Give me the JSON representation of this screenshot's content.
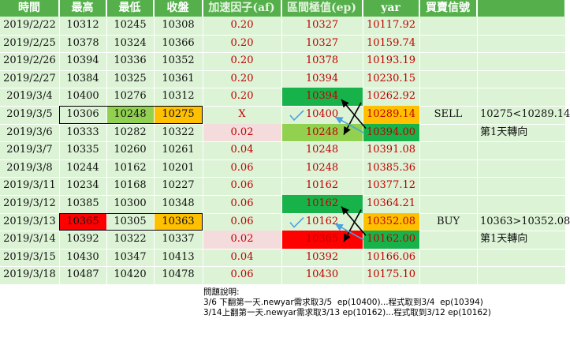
{
  "headers": [
    "時間",
    "最高",
    "最低",
    "收盤",
    "加速因子(af)",
    "區間極值(ep)",
    "yar",
    "買賣信號",
    ""
  ],
  "rows": [
    {
      "date": "2019/2/22",
      "high": "10312",
      "low": "10245",
      "close": "10308",
      "af": "0.20",
      "ep": "10327",
      "yar": "10117.92",
      "signal": "",
      "note": ""
    },
    {
      "date": "2019/2/25",
      "high": "10378",
      "low": "10324",
      "close": "10366",
      "af": "0.20",
      "ep": "10327",
      "yar": "10159.74",
      "signal": "",
      "note": ""
    },
    {
      "date": "2019/2/26",
      "high": "10394",
      "low": "10336",
      "close": "10352",
      "af": "0.20",
      "ep": "10378",
      "yar": "10193.19",
      "signal": "",
      "note": ""
    },
    {
      "date": "2019/2/27",
      "high": "10384",
      "low": "10325",
      "close": "10361",
      "af": "0.20",
      "ep": "10394",
      "yar": "10230.15",
      "signal": "",
      "note": ""
    },
    {
      "date": "2019/3/4",
      "high": "10400",
      "low": "10276",
      "close": "10312",
      "af": "0.20",
      "ep": "10394",
      "yar": "10262.92",
      "signal": "",
      "note": ""
    },
    {
      "date": "2019/3/5",
      "high": "10306",
      "low": "10248",
      "close": "10275",
      "af": "X",
      "ep": "10400",
      "yar": "10289.14",
      "signal": "SELL",
      "note": "10275<10289.14"
    },
    {
      "date": "2019/3/6",
      "high": "10333",
      "low": "10282",
      "close": "10322",
      "af": "0.02",
      "ep": "10248",
      "yar": "10394.00",
      "signal": "",
      "note": "第1天轉向"
    },
    {
      "date": "2019/3/7",
      "high": "10335",
      "low": "10260",
      "close": "10261",
      "af": "0.04",
      "ep": "10248",
      "yar": "10391.08",
      "signal": "",
      "note": ""
    },
    {
      "date": "2019/3/8",
      "high": "10244",
      "low": "10162",
      "close": "10201",
      "af": "0.06",
      "ep": "10248",
      "yar": "10385.36",
      "signal": "",
      "note": ""
    },
    {
      "date": "2019/3/11",
      "high": "10234",
      "low": "10168",
      "close": "10227",
      "af": "0.06",
      "ep": "10162",
      "yar": "10377.12",
      "signal": "",
      "note": ""
    },
    {
      "date": "2019/3/12",
      "high": "10385",
      "low": "10300",
      "close": "10348",
      "af": "0.06",
      "ep": "10162",
      "yar": "10364.21",
      "signal": "",
      "note": ""
    },
    {
      "date": "2019/3/13",
      "high": "10365",
      "low": "10305",
      "close": "10363",
      "af": "0.06",
      "ep": "10162",
      "yar": "10352.08",
      "signal": "BUY",
      "note": "10363>10352.08"
    },
    {
      "date": "2019/3/14",
      "high": "10392",
      "low": "10322",
      "close": "10337",
      "af": "0.02",
      "ep": "10365",
      "yar": "10162.00",
      "signal": "",
      "note": "第1天轉向"
    },
    {
      "date": "2019/3/15",
      "high": "10430",
      "low": "10347",
      "close": "10413",
      "af": "0.04",
      "ep": "10392",
      "yar": "10166.06",
      "signal": "",
      "note": ""
    },
    {
      "date": "2019/3/18",
      "high": "10487",
      "low": "10420",
      "close": "10478",
      "af": "0.06",
      "ep": "10430",
      "yar": "10175.10",
      "signal": "",
      "note": ""
    }
  ],
  "colors": {
    "header_bg": "#55b04c",
    "sheet_bg": "#dcf3d6",
    "green": "#17b24a",
    "light_green": "#92d050",
    "orange": "#ffc000",
    "red": "#ff0000",
    "pink": "#f5dcdc",
    "text_red": "#c00000",
    "arrow_blue": "#4aa3df"
  },
  "notes": {
    "title": "問題說明:",
    "line1": "3/6 下翻第一天.newyar需求取3/5  ep(10400)...程式取到3/4  ep(10394)",
    "line2": "3/14上翻第一天.newyar需求取3/13 ep(10162)...程式取到3/12 ep(10162)"
  }
}
